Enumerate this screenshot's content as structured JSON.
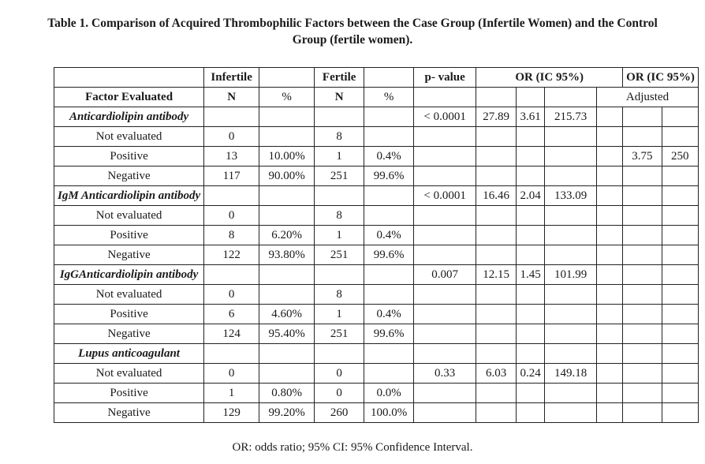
{
  "caption": {
    "line1": "Table 1. Comparison of Acquired Thrombophilic Factors between the Case Group (Infertile Women) and the Control",
    "line2": "Group (fertile women)."
  },
  "header": {
    "row1": [
      "",
      "Infertile",
      "",
      "Fertile",
      "",
      "p- value",
      "OR (IC 95%)",
      "OR (IC 95%)"
    ],
    "row2": [
      "Factor Evaluated",
      "N",
      "%",
      "N",
      "%",
      "",
      "",
      "",
      "",
      "Adjusted"
    ]
  },
  "rows": [
    [
      "Anticardiolipin antibody",
      "",
      "",
      "",
      "",
      "< 0.0001",
      "27.89",
      "3.61",
      "215.73",
      "",
      "",
      ""
    ],
    [
      "Not evaluated",
      "0",
      "",
      "8",
      "",
      "",
      "",
      "",
      "",
      "",
      "",
      ""
    ],
    [
      "Positive",
      "13",
      "10.00%",
      "1",
      "0.4%",
      "",
      "",
      "",
      "",
      "",
      "3.75",
      "250"
    ],
    [
      "Negative",
      "117",
      "90.00%",
      "251",
      "99.6%",
      "",
      "",
      "",
      "",
      "",
      "",
      ""
    ],
    [
      "IgM Anticardiolipin antibody",
      "",
      "",
      "",
      "",
      "< 0.0001",
      "16.46",
      "2.04",
      "133.09",
      "",
      "",
      ""
    ],
    [
      "Not evaluated",
      "0",
      "",
      "8",
      "",
      "",
      "",
      "",
      "",
      "",
      "",
      ""
    ],
    [
      "Positive",
      "8",
      "6.20%",
      "1",
      "0.4%",
      "",
      "",
      "",
      "",
      "",
      "",
      ""
    ],
    [
      "Negative",
      "122",
      "93.80%",
      "251",
      "99.6%",
      "",
      "",
      "",
      "",
      "",
      "",
      ""
    ],
    [
      "IgGAnticardiolipin antibody",
      "",
      "",
      "",
      "",
      "0.007",
      "12.15",
      "1.45",
      "101.99",
      "",
      "",
      ""
    ],
    [
      "Not evaluated",
      "0",
      "",
      "8",
      "",
      "",
      "",
      "",
      "",
      "",
      "",
      ""
    ],
    [
      "Positive",
      "6",
      "4.60%",
      "1",
      "0.4%",
      "",
      "",
      "",
      "",
      "",
      "",
      ""
    ],
    [
      "Negative",
      "124",
      "95.40%",
      "251",
      "99.6%",
      "",
      "",
      "",
      "",
      "",
      "",
      ""
    ],
    [
      "Lupus anticoagulant",
      "",
      "",
      "",
      "",
      "",
      "",
      "",
      "",
      "",
      "",
      ""
    ],
    [
      "Not evaluated",
      "0",
      "",
      "0",
      "",
      "0.33",
      "6.03",
      "0.24",
      "149.18",
      "",
      "",
      ""
    ],
    [
      "Positive",
      "1",
      "0.80%",
      "0",
      "0.0%",
      "",
      "",
      "",
      "",
      "",
      "",
      ""
    ],
    [
      "Negative",
      "129",
      "99.20%",
      "260",
      "100.0%",
      "",
      "",
      "",
      "",
      "",
      "",
      ""
    ]
  ],
  "section_rows": [
    0,
    4,
    8,
    12
  ],
  "footnote": "OR: odds ratio; 95% CI: 95% Confidence Interval."
}
